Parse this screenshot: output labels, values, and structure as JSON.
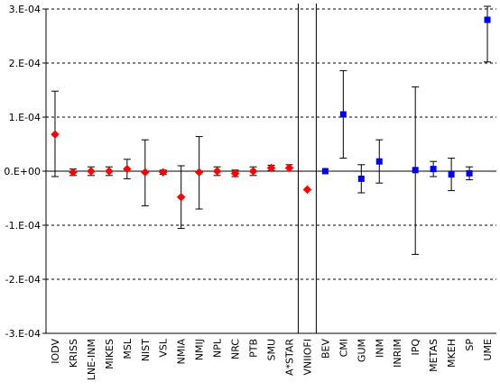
{
  "chart_data": {
    "type": "scatter",
    "title": "",
    "xlabel": "",
    "ylabel": "",
    "ylim": [
      -0.0003,
      0.0003
    ],
    "yticks": [
      {
        "value": 0.0003,
        "label": "3.E-04"
      },
      {
        "value": 0.0002,
        "label": "2.E-04"
      },
      {
        "value": 0.0001,
        "label": "1.E-04"
      },
      {
        "value": 0.0,
        "label": "0.E+00"
      },
      {
        "value": -0.0001,
        "label": "-1.E-04"
      },
      {
        "value": -0.0002,
        "label": "-2.E-04"
      },
      {
        "value": -0.0003,
        "label": "-3.E-04"
      }
    ],
    "grid": "horizontal dashed",
    "categories": [
      "IODV",
      "KRISS",
      "LNE-INM",
      "MIKES",
      "MSL",
      "NIST",
      "VSL",
      "NMIA",
      "NMIJ",
      "NPL",
      "NRC",
      "PTB",
      "SMU",
      "A*STAR",
      "VNIIOFI",
      "BEV",
      "CMI",
      "GUM",
      "INM",
      "INRIM",
      "IPQ",
      "METAS",
      "MKEH",
      "SP",
      "UME"
    ],
    "group_dividers_after": [
      "A*STAR",
      "VNIIOFI"
    ],
    "series": [
      {
        "marker": "diamond",
        "color": "#ff0000",
        "points": [
          {
            "category": "IODV",
            "y": 6.8e-05,
            "err_low": -1e-05,
            "err_high": 0.000148
          },
          {
            "category": "KRISS",
            "y": -2e-06,
            "err_low": -8e-06,
            "err_high": 4e-06
          },
          {
            "category": "LNE-INM",
            "y": 0.0,
            "err_low": -8e-06,
            "err_high": 8e-06
          },
          {
            "category": "MIKES",
            "y": 0.0,
            "err_low": -8e-06,
            "err_high": 8e-06
          },
          {
            "category": "MSL",
            "y": 4e-06,
            "err_low": -1.4e-05,
            "err_high": 2.2e-05
          },
          {
            "category": "NIST",
            "y": -2e-06,
            "err_low": -6.4e-05,
            "err_high": 5.8e-05
          },
          {
            "category": "VSL",
            "y": -2e-06,
            "err_low": -6e-06,
            "err_high": 2e-06
          },
          {
            "category": "NMIA",
            "y": -4.8e-05,
            "err_low": -0.000106,
            "err_high": 1e-05
          },
          {
            "category": "NMIJ",
            "y": -2e-06,
            "err_low": -7e-05,
            "err_high": 6.4e-05
          },
          {
            "category": "NPL",
            "y": 0.0,
            "err_low": -8e-06,
            "err_high": 8e-06
          },
          {
            "category": "NRC",
            "y": -4e-06,
            "err_low": -1e-05,
            "err_high": 2e-06
          },
          {
            "category": "PTB",
            "y": 0.0,
            "err_low": -8e-06,
            "err_high": 8e-06
          },
          {
            "category": "SMU",
            "y": 6e-06,
            "err_low": 1e-06,
            "err_high": 1.1e-05
          },
          {
            "category": "A*STAR",
            "y": 6e-06,
            "err_low": 0.0,
            "err_high": 1.2e-05
          },
          {
            "category": "VNIIOFI",
            "y": -3.4e-05,
            "err_low": null,
            "err_high": null
          }
        ]
      },
      {
        "marker": "square",
        "color": "#0000ff",
        "points": [
          {
            "category": "BEV",
            "y": 0.0,
            "err_low": null,
            "err_high": null
          },
          {
            "category": "CMI",
            "y": 0.000105,
            "err_low": 2.4e-05,
            "err_high": 0.000186
          },
          {
            "category": "GUM",
            "y": -1.4e-05,
            "err_low": -4e-05,
            "err_high": 1.2e-05
          },
          {
            "category": "INM",
            "y": 1.8e-05,
            "err_low": -2.2e-05,
            "err_high": 5.8e-05
          },
          {
            "category": "IPQ",
            "y": 2e-06,
            "err_low": -0.000154,
            "err_high": 0.000156
          },
          {
            "category": "METAS",
            "y": 4e-06,
            "err_low": -1e-05,
            "err_high": 1.8e-05
          },
          {
            "category": "MKEH",
            "y": -6e-06,
            "err_low": -3.6e-05,
            "err_high": 2.4e-05
          },
          {
            "category": "SP",
            "y": -4e-06,
            "err_low": -1.6e-05,
            "err_high": 8e-06
          },
          {
            "category": "UME",
            "y": 0.00028,
            "err_low": 0.000202,
            "err_high": 0.000305
          }
        ]
      }
    ]
  }
}
